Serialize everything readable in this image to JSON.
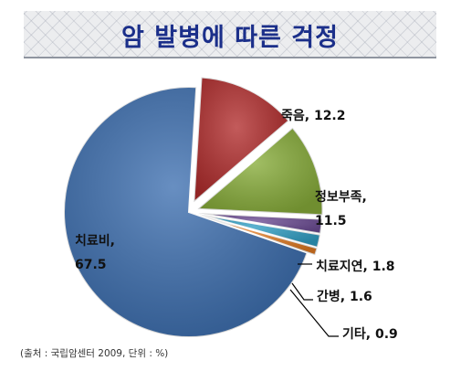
{
  "title": "암 발병에 따른 걱정",
  "source_note": "(출처 : 국립암센터 2009, 단위 : %)",
  "colors": {
    "title_text": "#1b2f8a",
    "banner_bg": "#ecedef",
    "slice_colors": [
      "#3d6fb0",
      "#b22d2d",
      "#88ad3a",
      "#6c4c94",
      "#2f9ec4",
      "#e07a22"
    ]
  },
  "chart_data": {
    "type": "pie",
    "title": "암 발병에 따른 걱정",
    "unit": "%",
    "slices": [
      {
        "label": "치료비",
        "value": 67.5,
        "label_text": [
          "치료비,",
          "67.5"
        ]
      },
      {
        "label": "죽음",
        "value": 12.2,
        "label_text": [
          "죽음, 12.2"
        ]
      },
      {
        "label": "정보부족",
        "value": 11.5,
        "label_text": [
          "정보부족,",
          "11.5"
        ]
      },
      {
        "label": "치료지연",
        "value": 1.8,
        "label_text": [
          "치료지연, 1.8"
        ]
      },
      {
        "label": "간병",
        "value": 1.6,
        "label_text": [
          "간병, 1.6"
        ]
      },
      {
        "label": "기타",
        "value": 0.9,
        "label_text": [
          "기타, 0.9"
        ]
      }
    ]
  }
}
